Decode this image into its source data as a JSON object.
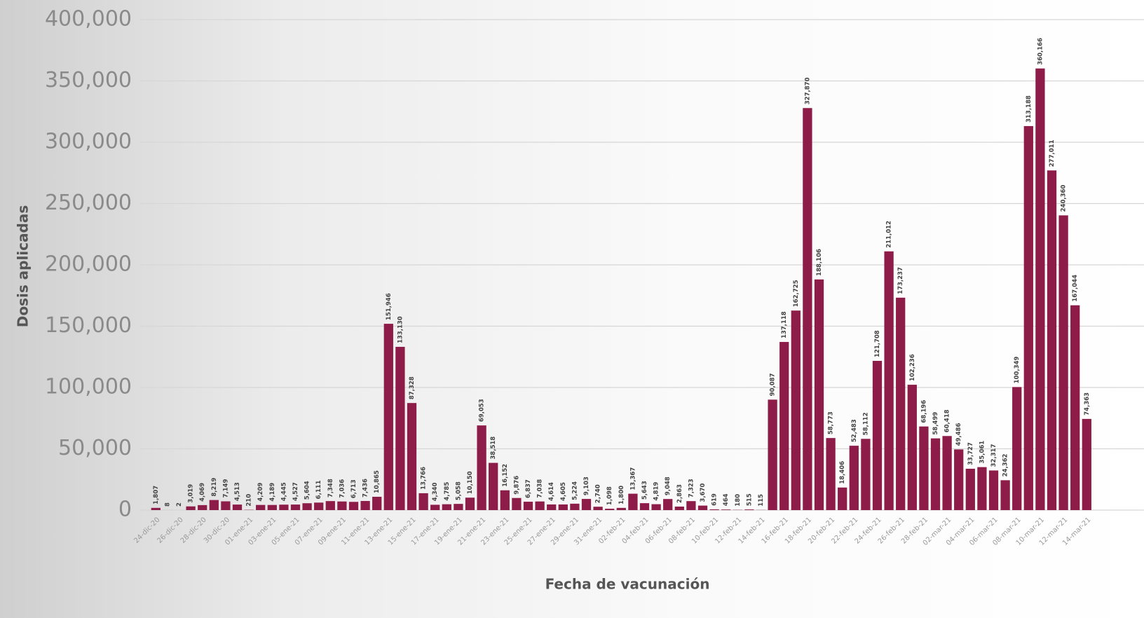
{
  "chart_data": {
    "type": "bar",
    "y_label": "Dosis aplicadas",
    "x_label": "Fecha de vacunación",
    "color": "#8e1c49",
    "grid": true,
    "ylim": [
      0,
      400000
    ],
    "yticks": [
      {
        "value": 0,
        "label": "0"
      },
      {
        "value": 50000,
        "label": "50,000"
      },
      {
        "value": 100000,
        "label": "100,000"
      },
      {
        "value": 150000,
        "label": "150,000"
      },
      {
        "value": 200000,
        "label": "200,000"
      },
      {
        "value": 250000,
        "label": "250,000"
      },
      {
        "value": 300000,
        "label": "300,000"
      },
      {
        "value": 350000,
        "label": "350,000"
      },
      {
        "value": 400000,
        "label": "400,000"
      }
    ],
    "categories": [
      "24-dic-20",
      null,
      "26-dic-20",
      null,
      "28-dic-20",
      null,
      "30-dic-20",
      null,
      "01-ene-21",
      null,
      "03-ene-21",
      null,
      "05-ene-21",
      null,
      "07-ene-21",
      null,
      "09-ene-21",
      null,
      "11-ene-21",
      null,
      "13-ene-21",
      null,
      "15-ene-21",
      null,
      "17-ene-21",
      null,
      "19-ene-21",
      null,
      "21-ene-21",
      null,
      "23-ene-21",
      null,
      "25-ene-21",
      null,
      "27-ene-21",
      null,
      "29-ene-21",
      null,
      "31-ene-21",
      null,
      "02-feb-21",
      null,
      "04-feb-21",
      null,
      "06-feb-21",
      null,
      "08-feb-21",
      null,
      "10-feb-21",
      null,
      "12-feb-21",
      null,
      "14-feb-21",
      null,
      "16-feb-21",
      null,
      "18-feb-21",
      null,
      "20-feb-21",
      null,
      "22-feb-21",
      null,
      "24-feb-21",
      null,
      "26-feb-21",
      null,
      "28-feb-21",
      null,
      "02-mar-21",
      null,
      "04-mar-21",
      null,
      "06-mar-21",
      null,
      "08-mar-21",
      null,
      "10-mar-21",
      null,
      "12-mar-21",
      null,
      "14-mar-21"
    ],
    "values": [
      1807,
      8,
      2,
      3019,
      4069,
      8219,
      7149,
      4513,
      210,
      4209,
      4189,
      4445,
      4527,
      5604,
      6111,
      7348,
      7036,
      6713,
      7436,
      10865,
      151946,
      133130,
      87328,
      13766,
      4340,
      4785,
      5058,
      10150,
      69053,
      38518,
      16152,
      9876,
      6837,
      7038,
      4614,
      4605,
      5224,
      9103,
      2740,
      1098,
      1800,
      13367,
      5643,
      4819,
      9048,
      2863,
      7323,
      3670,
      619,
      464,
      180,
      515,
      115,
      90087,
      137118,
      162725,
      327870,
      188106,
      58773,
      18406,
      52483,
      58112,
      121708,
      211012,
      173237,
      102236,
      68196,
      58499,
      60418,
      49486,
      33727,
      35061,
      32317,
      24362,
      100349,
      313188,
      360166,
      277011,
      240360,
      167044,
      74363
    ],
    "value_labels": [
      "1,807",
      "8",
      "2",
      "3,019",
      "4,069",
      "8,219",
      "7,149",
      "4,513",
      "210",
      "4,209",
      "4,189",
      "4,445",
      "4,527",
      "5,604",
      "6,111",
      "7,348",
      "7,036",
      "6,713",
      "7,436",
      "10,865",
      "151,946",
      "133,130",
      "87,328",
      "13,766",
      "4,340",
      "4,785",
      "5,058",
      "10,150",
      "69,053",
      "38,518",
      "16,152",
      "9,876",
      "6,837",
      "7,038",
      "4,614",
      "4,605",
      "5,224",
      "9,103",
      "2,740",
      "1,098",
      "1,800",
      "13,367",
      "5,643",
      "4,819",
      "9,048",
      "2,863",
      "7,323",
      "3,670",
      "619",
      "464",
      "180",
      "515",
      "115",
      "90,087",
      "137,118",
      "162,725",
      "327,870",
      "188,106",
      "58,773",
      "18,406",
      "52,483",
      "58,112",
      "121,708",
      "211,012",
      "173,237",
      "102,236",
      "68,196",
      "58,499",
      "60,418",
      "49,486",
      "33,727",
      "35,061",
      "32,317",
      "24,362",
      "100,349",
      "313,188",
      "360,166",
      "277,011",
      "240,360",
      "167,044",
      "74,363"
    ]
  }
}
